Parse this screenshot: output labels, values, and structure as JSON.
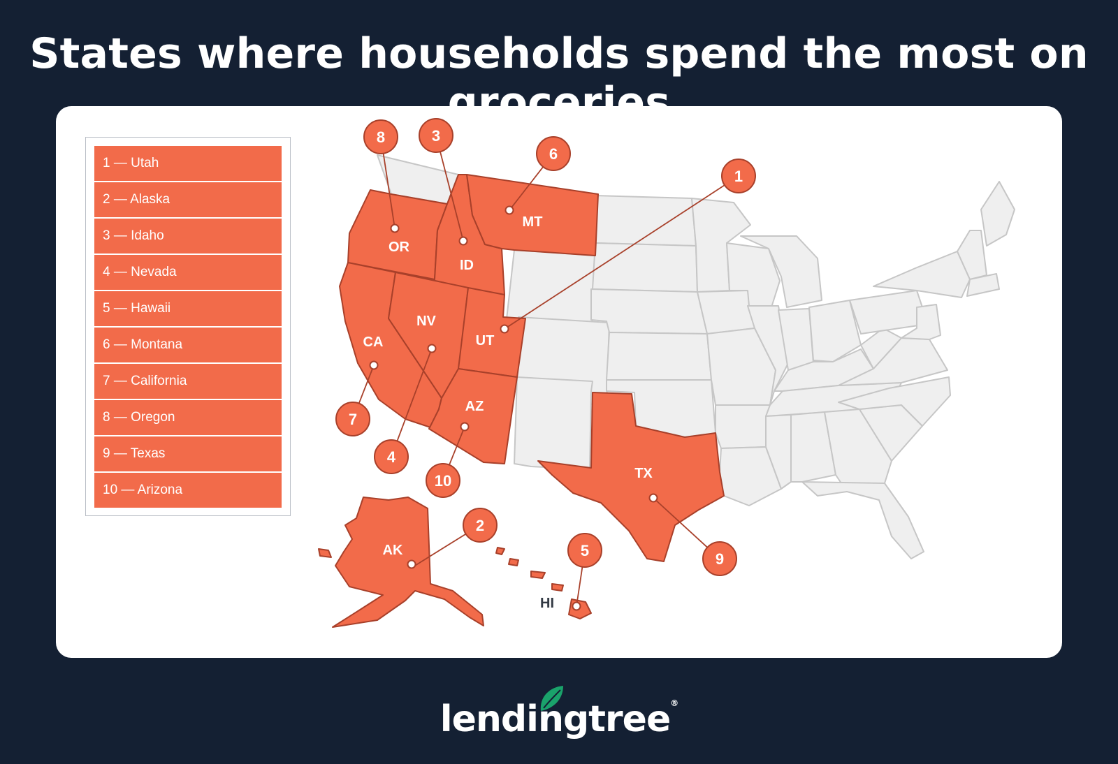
{
  "title": "States where households spend the most on groceries",
  "legend": [
    "1 — Utah",
    "2 — Alaska",
    "3  — Idaho",
    "4 — Nevada",
    "5 — Hawaii",
    "6 — Montana",
    "7 — California",
    "8 — Oregon",
    "9 — Texas",
    "10 — Arizona"
  ],
  "states": {
    "OR": "OR",
    "ID": "ID",
    "MT": "MT",
    "CA": "CA",
    "NV": "NV",
    "UT": "UT",
    "AZ": "AZ",
    "TX": "TX",
    "AK": "AK",
    "HI": "HI"
  },
  "markers": {
    "utah": "1",
    "alaska": "2",
    "idaho": "3",
    "nevada": "4",
    "hawaii": "5",
    "montana": "6",
    "california": "7",
    "oregon": "8",
    "texas": "9",
    "arizona": "10"
  },
  "colors": {
    "background": "#142033",
    "highlight": "#f26b4a",
    "highlight_border": "#a8402a",
    "other_states": "#efefef",
    "state_border": "#c6c6c6",
    "logo_leaf": "#1aa36b"
  },
  "logo": {
    "text": "lendingtree",
    "icon": "leaf-icon"
  }
}
